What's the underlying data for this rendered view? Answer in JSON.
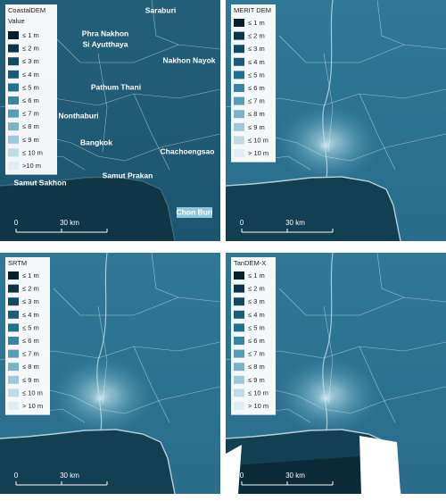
{
  "panels": [
    {
      "title": "CoastalDEM",
      "subtitle": "Value",
      "legend": [
        "≤ 1 m",
        "≤ 2 m",
        "≤ 3 m",
        "≤ 4 m",
        "≤ 5 m",
        "≤ 6 m",
        "≤ 7 m",
        "≤ 8 m",
        "≤ 9 m",
        "≤ 10 m",
        ">10 m"
      ],
      "places": [
        "Saraburi",
        "Phra Nakhon",
        "Si Ayutthaya",
        "Nakhon Nayok",
        "Pathum Thani",
        "Nonthaburi",
        "Bangkok",
        "Chachoengsao",
        "Samut Sakhon",
        "Samut Prakan",
        "Chon Buri"
      ],
      "scale": [
        "0",
        "30 km"
      ]
    },
    {
      "title": "MERIT DEM",
      "legend": [
        "≤ 1 m",
        "≤ 2 m",
        "≤ 3 m",
        "≤ 4 m",
        "≤ 5 m",
        "≤ 6 m",
        "≤ 7 m",
        "≤ 8 m",
        "≤ 9 m",
        "≤ 10 m",
        "> 10 m"
      ],
      "scale": [
        "0",
        "30 km"
      ]
    },
    {
      "title": "SRTM",
      "legend": [
        "≤ 1 m",
        "≤ 2 m",
        "≤ 3 m",
        "≤ 4 m",
        "≤ 5 m",
        "≤ 6 m",
        "≤ 7 m",
        "≤ 8 m",
        "≤ 9 m",
        "≤ 10 m",
        "> 10 m"
      ],
      "scale": [
        "0",
        "30 km"
      ]
    },
    {
      "title": "TanDEM-X",
      "legend": [
        "≤ 1 m",
        "≤ 2 m",
        "≤ 3 m",
        "≤ 4 m",
        "≤ 5 m",
        "≤ 6 m",
        "≤ 7 m",
        "≤ 8 m",
        "≤ 9 m",
        "≤ 10 m",
        "> 10 m"
      ],
      "scale": [
        "0",
        "30 km"
      ]
    }
  ]
}
